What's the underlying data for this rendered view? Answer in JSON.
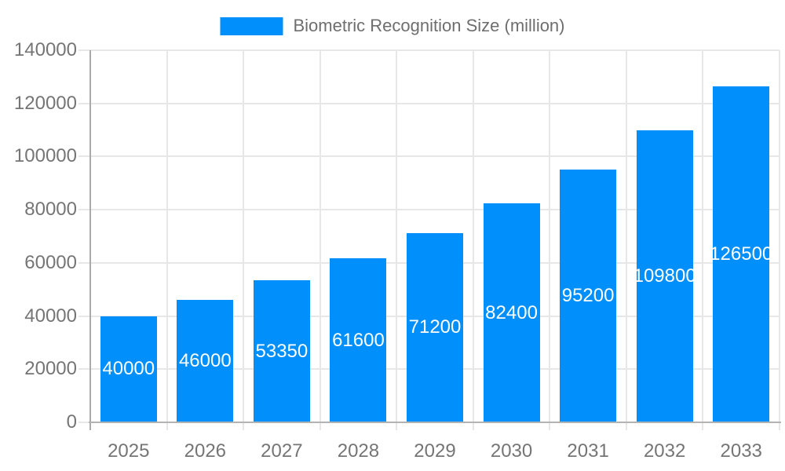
{
  "chart_data": {
    "type": "bar",
    "title": "Biometric Recognition Size (million)",
    "categories": [
      "2025",
      "2026",
      "2027",
      "2028",
      "2029",
      "2030",
      "2031",
      "2032",
      "2033"
    ],
    "values": [
      40000,
      46000,
      53350,
      61600,
      71200,
      82400,
      95200,
      109800,
      126500
    ],
    "value_labels": [
      "40000",
      "46000",
      "53350",
      "61600",
      "71200",
      "82400",
      "95200",
      "109800",
      "126500"
    ],
    "yticks": [
      {
        "value": 0,
        "label": "0"
      },
      {
        "value": 20000,
        "label": "20000"
      },
      {
        "value": 40000,
        "label": "40000"
      },
      {
        "value": 60000,
        "label": "60000"
      },
      {
        "value": 80000,
        "label": "80000"
      },
      {
        "value": 100000,
        "label": "100000"
      },
      {
        "value": 120000,
        "label": "120000"
      },
      {
        "value": 140000,
        "label": "140000"
      }
    ],
    "ylim": [
      0,
      140000
    ],
    "xlabel": "",
    "ylabel": "",
    "grid": true,
    "legend_position": "top",
    "bar_color": "#008FFB",
    "grid_color": "#e7e7e7",
    "axis_color": "#b3b3b3",
    "tick_label_color": "#757575",
    "legend_text_color": "#6e6e6e",
    "bar_label_color": "#ffffff"
  }
}
